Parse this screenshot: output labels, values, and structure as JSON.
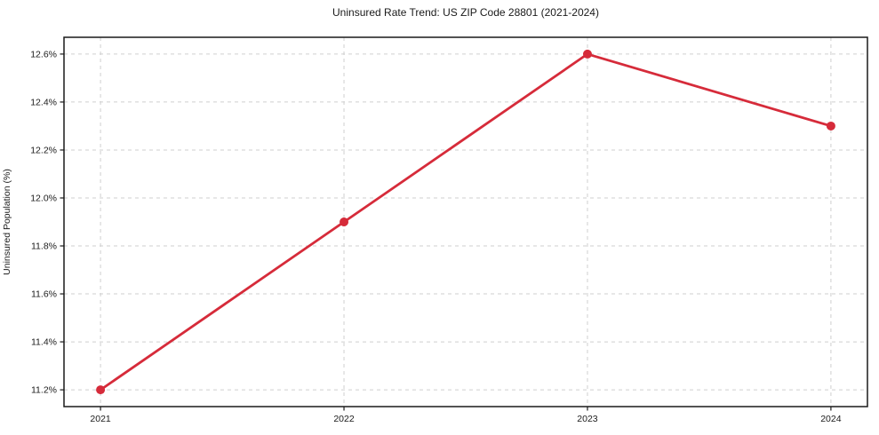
{
  "chart_data": {
    "type": "line",
    "title": "Uninsured Rate Trend: US ZIP Code 28801 (2021-2024)",
    "xlabel": "",
    "ylabel": "Uninsured Population (%)",
    "x": [
      2021,
      2022,
      2023,
      2024
    ],
    "x_tick_labels": [
      "2021",
      "2022",
      "2023",
      "2024"
    ],
    "values": [
      11.2,
      11.9,
      12.6,
      12.3
    ],
    "y_ticks": [
      11.2,
      11.4,
      11.6,
      11.8,
      12.0,
      12.2,
      12.4,
      12.6
    ],
    "y_tick_labels": [
      "11.2%",
      "11.4%",
      "11.6%",
      "11.8%",
      "12.0%",
      "12.2%",
      "12.4%",
      "12.6%"
    ],
    "xlim": [
      2020.85,
      2024.15
    ],
    "ylim": [
      11.13,
      12.67
    ],
    "grid": true,
    "legend": "none",
    "colors": {
      "line": "#d62b3a",
      "marker": "#d62b3a",
      "grid": "#cfcfcf",
      "spine": "#1a1a1a",
      "background": "#ffffff"
    }
  }
}
